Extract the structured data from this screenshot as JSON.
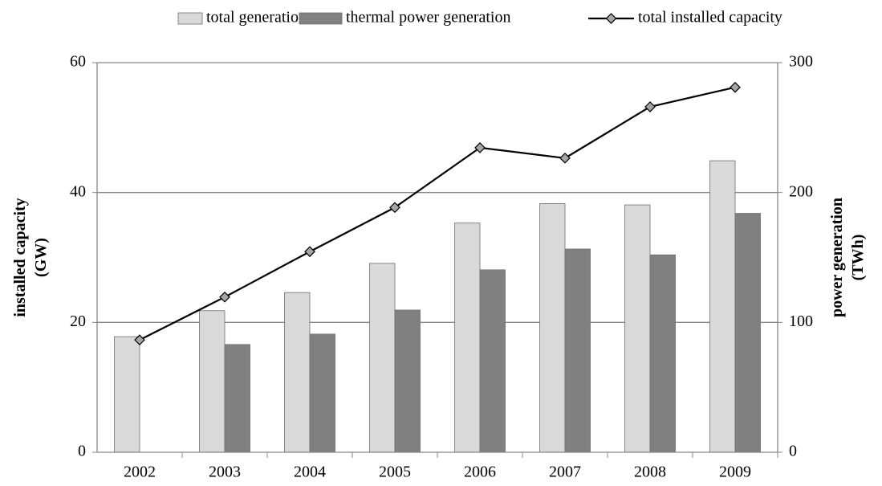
{
  "chart_data": {
    "type": "bar",
    "categories": [
      "2002",
      "2003",
      "2004",
      "2005",
      "2006",
      "2007",
      "2008",
      "2009"
    ],
    "series": [
      {
        "name": "total generation",
        "color": "#d9d9d9",
        "axis": "y2",
        "values": [
          89,
          109,
          123,
          145.5,
          176.5,
          191.5,
          190.5,
          224.5
        ]
      },
      {
        "name": "thermal power generation",
        "color": "#808080",
        "axis": "y2",
        "values": [
          null,
          83,
          91,
          109.5,
          140.5,
          156.5,
          152,
          184
        ]
      },
      {
        "name": "total installed capacity",
        "color": "#000000",
        "type": "line",
        "marker_color": "#a6a6a6",
        "values": [
          17.3,
          23.9,
          30.9,
          37.7,
          46.9,
          45.3,
          53.2,
          56.2
        ]
      }
    ],
    "y_label": [
      "installed capacity",
      "(GW)"
    ],
    "y2_label": [
      "power generation",
      "(TWh)"
    ],
    "ylim": [
      0,
      60
    ],
    "yticks": [
      0,
      20,
      40,
      60
    ],
    "y2lim": [
      0,
      300
    ],
    "y2ticks": [
      0,
      100,
      200,
      300
    ],
    "grid": true,
    "legend": "top"
  }
}
